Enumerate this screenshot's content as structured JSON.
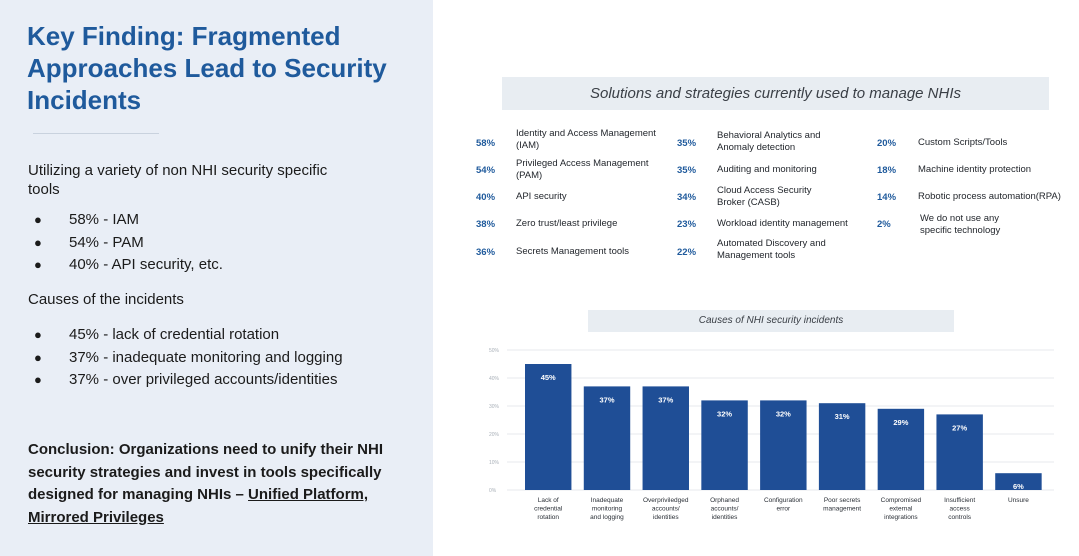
{
  "left_panel": {
    "title": "Key Finding: Fragmented Approaches Lead to Security Incidents",
    "tools_intro": "Utilizing a variety of non NHI security specific tools",
    "tools_bullets": [
      "58% - IAM",
      "54% - PAM",
      "40% - API security, etc."
    ],
    "causes_heading": "Causes of the incidents",
    "causes_bullets": [
      "45% - lack of credential rotation",
      "37% - inadequate monitoring and logging",
      "37% - over privileged accounts/identities"
    ],
    "bullet_glyph": "●",
    "conclusion_text": "Conclusion: Organizations need to unify their NHI security strategies and invest in tools specifically designed for managing NHIs –",
    "conclusion_link": "Unified Platform, Mirrored Privileges"
  },
  "solutions": {
    "title": "Solutions and strategies currently used to manage NHIs",
    "columns": [
      [
        {
          "pct": "58%",
          "label": "Identity and Access Management (IAM)"
        },
        {
          "pct": "54%",
          "label": "Privileged Access Management (PAM)"
        },
        {
          "pct": "40%",
          "label": "API security"
        },
        {
          "pct": "38%",
          "label": "Zero trust/least privilege"
        },
        {
          "pct": "36%",
          "label": "Secrets Management tools"
        }
      ],
      [
        {
          "pct": "35%",
          "label": "Behavioral Analytics and Anomaly detection"
        },
        {
          "pct": "35%",
          "label": "Auditing and monitoring"
        },
        {
          "pct": "34%",
          "label": "Cloud Access Security Broker (CASB)"
        },
        {
          "pct": "23%",
          "label": "Workload identity management"
        },
        {
          "pct": "22%",
          "label": "Automated Discovery and Management tools"
        }
      ],
      [
        {
          "pct": "20%",
          "label": "Custom Scripts/Tools"
        },
        {
          "pct": "18%",
          "label": "Machine identity protection"
        },
        {
          "pct": "14%",
          "label": "Robotic process automation(RPA)"
        },
        {
          "pct": "2%",
          "label": "We do not use any specific technology"
        }
      ]
    ]
  },
  "chart_data": {
    "type": "bar",
    "title": "Causes of NHI security incidents",
    "categories": [
      [
        "Lack of",
        "credential",
        "rotation"
      ],
      [
        "Inadequate",
        "monitoring",
        "and logging"
      ],
      [
        "Overpriviledged",
        "accounts/",
        "identities"
      ],
      [
        "Orphaned",
        "accounts/",
        "identities"
      ],
      [
        "Configuration",
        "error"
      ],
      [
        "Poor secrets",
        "management"
      ],
      [
        "Compromised",
        "external",
        "integrations"
      ],
      [
        "Insufficient",
        "access",
        "controls"
      ],
      [
        "Unsure"
      ]
    ],
    "values": [
      45,
      37,
      37,
      32,
      32,
      31,
      29,
      27,
      6
    ],
    "value_labels": [
      "45%",
      "37%",
      "37%",
      "32%",
      "32%",
      "31%",
      "29%",
      "27%",
      "6%"
    ],
    "ylim": [
      0,
      50
    ],
    "yticks": [
      "0%",
      "10%",
      "20%",
      "30%",
      "40%",
      "50%"
    ],
    "grid": true,
    "bar_color": "#1f4e96"
  }
}
